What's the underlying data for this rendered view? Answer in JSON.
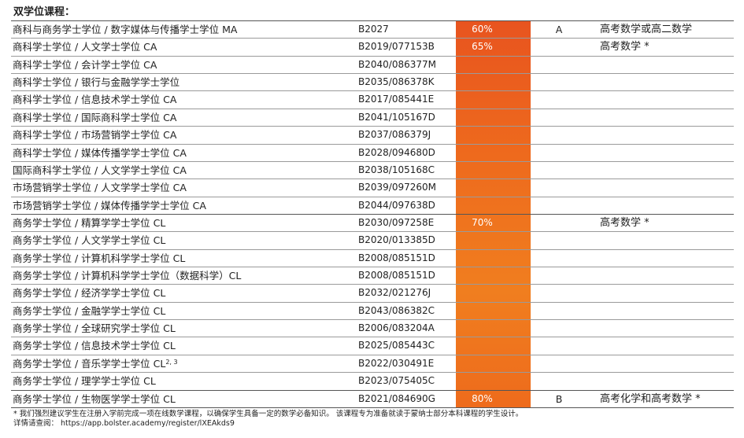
{
  "heading": "双学位课程：",
  "rows": [
    {
      "name": "商科与商务学士学位 / 数字媒体与传播学士学位 MA",
      "code": "B2027",
      "pct": "60%",
      "grade": "A",
      "req": "高考数学或高二数学"
    },
    {
      "name": "商科学士学位 / 人文学士学位 CA",
      "code": "B2019/077153B",
      "pct": "65%",
      "grade": "",
      "req": "高考数学 *"
    },
    {
      "name": "商科学士学位 / 会计学士学位 CA",
      "code": "B2040/086377M",
      "pct": "",
      "grade": "",
      "req": ""
    },
    {
      "name": "商科学士学位 / 银行与金融学学士学位",
      "code": "B2035/086378K",
      "pct": "",
      "grade": "",
      "req": ""
    },
    {
      "name": "商科学士学位 / 信息技术学士学位 CA",
      "code": "B2017/085441E",
      "pct": "",
      "grade": "",
      "req": ""
    },
    {
      "name": "商科学士学位 / 国际商科学士学位 CA",
      "code": "B2041/105167D",
      "pct": "",
      "grade": "",
      "req": ""
    },
    {
      "name": "商科学士学位 / 市场营销学士学位 CA",
      "code": "B2037/086379J",
      "pct": "",
      "grade": "",
      "req": ""
    },
    {
      "name": "商科学士学位 / 媒体传播学学士学位 CA",
      "code": "B2028/094680D",
      "pct": "",
      "grade": "",
      "req": ""
    },
    {
      "name": "国际商科学士学位 / 人文学学士学位 CA",
      "code": "B2038/105168C",
      "pct": "",
      "grade": "",
      "req": ""
    },
    {
      "name": "市场营销学士学位 / 人文学学士学位 CA",
      "code": "B2039/097260M",
      "pct": "",
      "grade": "",
      "req": ""
    },
    {
      "name": "市场营销学士学位 / 媒体传播学学士学位 CA",
      "code": "B2044/097638D",
      "pct": "",
      "grade": "",
      "req": ""
    },
    {
      "name": "商务学士学位 / 精算学学士学位 CL",
      "code": "B2030/097258E",
      "pct": "70%",
      "grade": "",
      "req": "高考数学 *"
    },
    {
      "name": "商务学士学位 / 人文学学士学位 CL",
      "code": "B2020/013385D",
      "pct": "",
      "grade": "",
      "req": ""
    },
    {
      "name": "商务学士学位 / 计算机科学学士学位 CL",
      "code": "B2008/085151D",
      "pct": "",
      "grade": "",
      "req": ""
    },
    {
      "name": "商务学士学位 / 计算机科学学士学位（数据科学）CL",
      "code": "B2008/085151D",
      "pct": "",
      "grade": "",
      "req": ""
    },
    {
      "name": "商务学士学位 / 经济学学士学位 CL",
      "code": "B2032/021276J",
      "pct": "",
      "grade": "",
      "req": ""
    },
    {
      "name": "商务学士学位 / 金融学学士学位 CL",
      "code": "B2043/086382C",
      "pct": "",
      "grade": "",
      "req": ""
    },
    {
      "name": "商务学士学位 / 全球研究学士学位 CL",
      "code": "B2006/083204A",
      "pct": "",
      "grade": "",
      "req": ""
    },
    {
      "name": "商务学士学位 / 信息技术学士学位 CL",
      "code": "B2025/085443C",
      "pct": "",
      "grade": "",
      "req": ""
    },
    {
      "name": "商务学士学位 / 音乐学学士学位 CL",
      "sup": "2, 3",
      "code": "B2022/030491E",
      "pct": "",
      "grade": "",
      "req": ""
    },
    {
      "name": "商务学士学位 / 理学学士学位 CL",
      "code": "B2023/075405C",
      "pct": "",
      "grade": "",
      "req": ""
    },
    {
      "name": "商务学士学位 / 生物医学学士学位 CL",
      "code": "B2021/084690G",
      "pct": "80%",
      "grade": "B",
      "req": "高考化学和高考数学 *"
    }
  ],
  "footnote": {
    "line1": "* 我们强烈建议学生在注册入学前完成一项在线数学课程，以确保学生具备一定的数学必备知识。 该课程专为准备就读于蒙纳士部分本科课程的学生设计。",
    "line2": "  详情请查阅： https://app.bolster.academy/register/lXEAkds9"
  },
  "colors": {
    "accent_top": "#e8541f",
    "accent_bottom": "#f07e1f"
  }
}
